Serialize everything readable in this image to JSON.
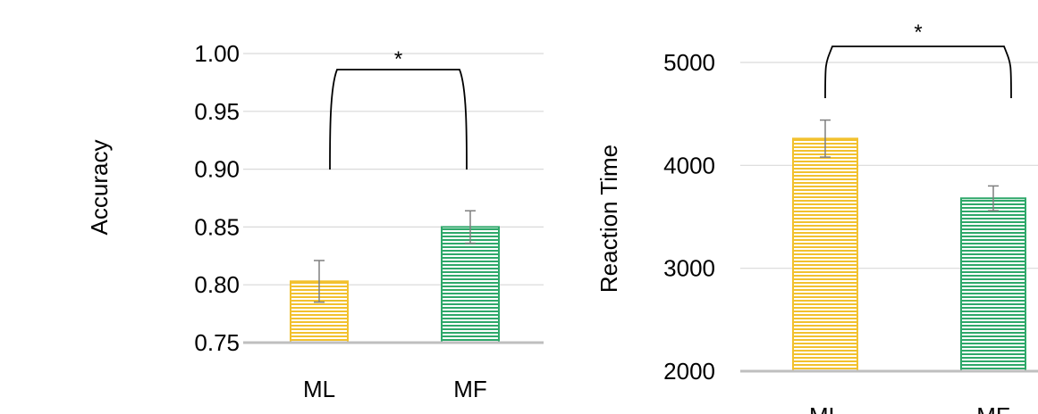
{
  "chart_data": [
    {
      "type": "bar",
      "ylabel": "Accuracy",
      "categories": [
        "ML",
        "MF"
      ],
      "values": [
        0.803,
        0.85
      ],
      "errors": [
        0.018,
        0.014
      ],
      "ylim": [
        0.75,
        1.0
      ],
      "yticks": [
        "0.75",
        "0.80",
        "0.85",
        "0.90",
        "0.95",
        "1.00"
      ],
      "colors": [
        "#F2C12E",
        "#2EA86A"
      ],
      "grid": true,
      "significance": {
        "label": "*",
        "pair": [
          "ML",
          "MF"
        ]
      }
    },
    {
      "type": "bar",
      "ylabel": "Reaction Time",
      "categories": [
        "ML",
        "MF"
      ],
      "values": [
        4260,
        3680
      ],
      "errors": [
        180,
        120
      ],
      "ylim": [
        2000,
        5000
      ],
      "yticks": [
        "2000",
        "3000",
        "4000",
        "5000"
      ],
      "colors": [
        "#F2C12E",
        "#2EA86A"
      ],
      "grid": true,
      "significance": {
        "label": "*",
        "pair": [
          "ML",
          "MF"
        ]
      }
    }
  ]
}
